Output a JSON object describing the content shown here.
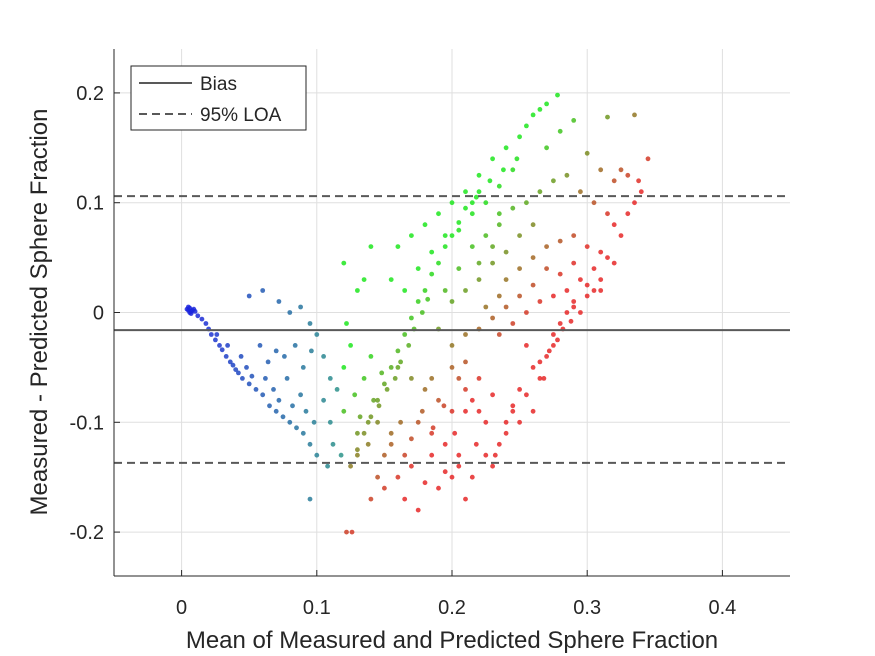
{
  "chart_data": {
    "type": "scatter",
    "xlabel": "Mean of Measured and Predicted Sphere Fraction",
    "ylabel": "Measured - Predicted Sphere Fraction",
    "xlim": [
      -0.05,
      0.45
    ],
    "ylim": [
      -0.24,
      0.24
    ],
    "xticks": [
      0,
      0.1,
      0.2,
      0.3,
      0.4
    ],
    "xtick_labels": [
      "0",
      "0.1",
      "0.2",
      "0.3",
      "0.4"
    ],
    "yticks": [
      -0.2,
      -0.1,
      0,
      0.1,
      0.2
    ],
    "ytick_labels": [
      "-0.2",
      "-0.1",
      "0",
      "0.1",
      "0.2"
    ],
    "grid": true,
    "bias": -0.016,
    "loa_upper": 0.106,
    "loa_lower": -0.137,
    "legend": {
      "location": "top-left",
      "entries": [
        {
          "label": "Bias",
          "style": "solid",
          "color": "#595959"
        },
        {
          "label": "95% LOA",
          "style": "dashed",
          "color": "#595959"
        }
      ]
    },
    "point_color_scale": "blue (low) → green → red (high)",
    "points": [
      [
        0.004,
        0.003
      ],
      [
        0.005,
        0.002
      ],
      [
        0.006,
        0.004
      ],
      [
        0.007,
        0.001
      ],
      [
        0.008,
        0.002
      ],
      [
        0.006,
        0.0
      ],
      [
        0.009,
        0.003
      ],
      [
        0.005,
        0.005
      ],
      [
        0.01,
        0.001
      ],
      [
        0.007,
        -0.001
      ],
      [
        0.012,
        -0.003
      ],
      [
        0.015,
        -0.006
      ],
      [
        0.018,
        -0.01
      ],
      [
        0.02,
        -0.015
      ],
      [
        0.022,
        -0.02
      ],
      [
        0.025,
        -0.025
      ],
      [
        0.028,
        -0.03
      ],
      [
        0.03,
        -0.034
      ],
      [
        0.033,
        -0.04
      ],
      [
        0.036,
        -0.045
      ],
      [
        0.04,
        -0.052
      ],
      [
        0.042,
        -0.055
      ],
      [
        0.045,
        -0.06
      ],
      [
        0.048,
        -0.05
      ],
      [
        0.05,
        -0.065
      ],
      [
        0.034,
        -0.03
      ],
      [
        0.026,
        -0.02
      ],
      [
        0.038,
        -0.048
      ],
      [
        0.044,
        -0.04
      ],
      [
        0.052,
        -0.058
      ],
      [
        0.055,
        -0.07
      ],
      [
        0.06,
        -0.075
      ],
      [
        0.062,
        -0.06
      ],
      [
        0.065,
        -0.085
      ],
      [
        0.068,
        -0.07
      ],
      [
        0.07,
        -0.09
      ],
      [
        0.072,
        -0.08
      ],
      [
        0.075,
        -0.095
      ],
      [
        0.078,
        -0.06
      ],
      [
        0.08,
        -0.1
      ],
      [
        0.082,
        -0.085
      ],
      [
        0.085,
        -0.105
      ],
      [
        0.088,
        -0.075
      ],
      [
        0.09,
        -0.11
      ],
      [
        0.092,
        -0.09
      ],
      [
        0.095,
        -0.12
      ],
      [
        0.098,
        -0.1
      ],
      [
        0.1,
        -0.13
      ],
      [
        0.058,
        -0.03
      ],
      [
        0.064,
        -0.045
      ],
      [
        0.07,
        -0.035
      ],
      [
        0.076,
        -0.04
      ],
      [
        0.084,
        -0.03
      ],
      [
        0.09,
        -0.05
      ],
      [
        0.096,
        -0.035
      ],
      [
        0.05,
        0.015
      ],
      [
        0.06,
        0.02
      ],
      [
        0.072,
        0.01
      ],
      [
        0.08,
        0.0
      ],
      [
        0.088,
        0.005
      ],
      [
        0.095,
        -0.01
      ],
      [
        0.1,
        -0.02
      ],
      [
        0.105,
        -0.04
      ],
      [
        0.11,
        -0.06
      ],
      [
        0.105,
        -0.08
      ],
      [
        0.11,
        -0.1
      ],
      [
        0.112,
        -0.12
      ],
      [
        0.108,
        -0.14
      ],
      [
        0.095,
        -0.17
      ],
      [
        0.118,
        -0.13
      ],
      [
        0.12,
        -0.09
      ],
      [
        0.115,
        -0.07
      ],
      [
        0.12,
        -0.05
      ],
      [
        0.125,
        -0.03
      ],
      [
        0.122,
        -0.01
      ],
      [
        0.12,
        0.045
      ],
      [
        0.13,
        0.02
      ],
      [
        0.126,
        -0.2
      ],
      [
        0.122,
        -0.2
      ],
      [
        0.13,
        -0.11
      ],
      [
        0.128,
        -0.075
      ],
      [
        0.135,
        -0.06
      ],
      [
        0.132,
        -0.095
      ],
      [
        0.138,
        -0.12
      ],
      [
        0.14,
        -0.04
      ],
      [
        0.142,
        -0.08
      ],
      [
        0.145,
        -0.1
      ],
      [
        0.148,
        -0.055
      ],
      [
        0.15,
        -0.13
      ],
      [
        0.135,
        0.03
      ],
      [
        0.14,
        0.06
      ],
      [
        0.155,
        0.03
      ],
      [
        0.16,
        0.06
      ],
      [
        0.165,
        0.02
      ],
      [
        0.17,
        0.07
      ],
      [
        0.175,
        0.04
      ],
      [
        0.18,
        0.08
      ],
      [
        0.185,
        0.055
      ],
      [
        0.19,
        0.09
      ],
      [
        0.195,
        0.07
      ],
      [
        0.2,
        0.1
      ],
      [
        0.205,
        0.075
      ],
      [
        0.21,
        0.11
      ],
      [
        0.215,
        0.09
      ],
      [
        0.22,
        0.125
      ],
      [
        0.225,
        0.1
      ],
      [
        0.23,
        0.14
      ],
      [
        0.235,
        0.115
      ],
      [
        0.24,
        0.15
      ],
      [
        0.245,
        0.13
      ],
      [
        0.25,
        0.16
      ],
      [
        0.255,
        0.17
      ],
      [
        0.26,
        0.18
      ],
      [
        0.265,
        0.185
      ],
      [
        0.27,
        0.19
      ],
      [
        0.278,
        0.198
      ],
      [
        0.248,
        0.14
      ],
      [
        0.238,
        0.13
      ],
      [
        0.228,
        0.12
      ],
      [
        0.218,
        0.105
      ],
      [
        0.125,
        -0.14
      ],
      [
        0.13,
        -0.125
      ],
      [
        0.135,
        -0.11
      ],
      [
        0.14,
        -0.095
      ],
      [
        0.145,
        -0.08
      ],
      [
        0.15,
        -0.065
      ],
      [
        0.155,
        -0.05
      ],
      [
        0.16,
        -0.035
      ],
      [
        0.165,
        -0.02
      ],
      [
        0.17,
        -0.005
      ],
      [
        0.175,
        0.01
      ],
      [
        0.18,
        0.02
      ],
      [
        0.185,
        0.035
      ],
      [
        0.19,
        0.045
      ],
      [
        0.195,
        0.06
      ],
      [
        0.2,
        0.07
      ],
      [
        0.205,
        0.082
      ],
      [
        0.21,
        0.095
      ],
      [
        0.215,
        0.1
      ],
      [
        0.22,
        0.11
      ],
      [
        0.13,
        -0.13
      ],
      [
        0.138,
        -0.1
      ],
      [
        0.146,
        -0.085
      ],
      [
        0.152,
        -0.07
      ],
      [
        0.158,
        -0.06
      ],
      [
        0.162,
        -0.045
      ],
      [
        0.168,
        -0.03
      ],
      [
        0.172,
        -0.015
      ],
      [
        0.178,
        0.0
      ],
      [
        0.182,
        0.012
      ],
      [
        0.15,
        -0.16
      ],
      [
        0.16,
        -0.15
      ],
      [
        0.165,
        -0.17
      ],
      [
        0.17,
        -0.14
      ],
      [
        0.175,
        -0.18
      ],
      [
        0.18,
        -0.155
      ],
      [
        0.185,
        -0.13
      ],
      [
        0.19,
        -0.16
      ],
      [
        0.195,
        -0.145
      ],
      [
        0.2,
        -0.15
      ],
      [
        0.205,
        -0.13
      ],
      [
        0.21,
        -0.17
      ],
      [
        0.155,
        -0.12
      ],
      [
        0.162,
        -0.1
      ],
      [
        0.17,
        -0.115
      ],
      [
        0.178,
        -0.09
      ],
      [
        0.186,
        -0.105
      ],
      [
        0.194,
        -0.085
      ],
      [
        0.202,
        -0.11
      ],
      [
        0.21,
        -0.09
      ],
      [
        0.218,
        -0.12
      ],
      [
        0.225,
        -0.1
      ],
      [
        0.232,
        -0.13
      ],
      [
        0.24,
        -0.11
      ],
      [
        0.23,
        -0.075
      ],
      [
        0.22,
        -0.06
      ],
      [
        0.21,
        -0.045
      ],
      [
        0.2,
        -0.03
      ],
      [
        0.19,
        -0.015
      ],
      [
        0.185,
        -0.06
      ],
      [
        0.195,
        0.02
      ],
      [
        0.205,
        0.04
      ],
      [
        0.215,
        0.06
      ],
      [
        0.225,
        0.07
      ],
      [
        0.235,
        0.08
      ],
      [
        0.245,
        0.095
      ],
      [
        0.255,
        0.1
      ],
      [
        0.265,
        0.11
      ],
      [
        0.275,
        0.12
      ],
      [
        0.285,
        0.125
      ],
      [
        0.295,
        0.11
      ],
      [
        0.305,
        0.1
      ],
      [
        0.315,
        0.09
      ],
      [
        0.32,
        0.08
      ],
      [
        0.325,
        0.07
      ],
      [
        0.33,
        0.09
      ],
      [
        0.335,
        0.1
      ],
      [
        0.34,
        0.11
      ],
      [
        0.345,
        0.14
      ],
      [
        0.335,
        0.18
      ],
      [
        0.315,
        0.178
      ],
      [
        0.29,
        0.175
      ],
      [
        0.28,
        0.165
      ],
      [
        0.27,
        0.15
      ],
      [
        0.3,
        0.145
      ],
      [
        0.31,
        0.13
      ],
      [
        0.32,
        0.12
      ],
      [
        0.325,
        0.13
      ],
      [
        0.33,
        0.125
      ],
      [
        0.338,
        0.12
      ],
      [
        0.24,
        0.03
      ],
      [
        0.25,
        0.04
      ],
      [
        0.26,
        0.05
      ],
      [
        0.27,
        0.06
      ],
      [
        0.28,
        0.065
      ],
      [
        0.29,
        0.07
      ],
      [
        0.3,
        0.06
      ],
      [
        0.31,
        0.055
      ],
      [
        0.315,
        0.05
      ],
      [
        0.32,
        0.045
      ],
      [
        0.305,
        0.04
      ],
      [
        0.295,
        0.03
      ],
      [
        0.285,
        0.02
      ],
      [
        0.275,
        0.015
      ],
      [
        0.265,
        0.01
      ],
      [
        0.255,
        0.0
      ],
      [
        0.245,
        -0.01
      ],
      [
        0.235,
        -0.02
      ],
      [
        0.28,
        0.035
      ],
      [
        0.29,
        0.045
      ],
      [
        0.3,
        0.025
      ],
      [
        0.31,
        0.02
      ],
      [
        0.27,
        0.04
      ],
      [
        0.26,
        0.025
      ],
      [
        0.25,
        0.015
      ],
      [
        0.24,
        0.005
      ],
      [
        0.23,
        -0.005
      ],
      [
        0.22,
        -0.015
      ],
      [
        0.25,
        0.07
      ],
      [
        0.26,
        0.08
      ],
      [
        0.255,
        -0.03
      ],
      [
        0.26,
        -0.05
      ],
      [
        0.265,
        -0.06
      ],
      [
        0.27,
        -0.04
      ],
      [
        0.275,
        -0.02
      ],
      [
        0.28,
        -0.01
      ],
      [
        0.285,
        0.0
      ],
      [
        0.29,
        0.005
      ],
      [
        0.25,
        -0.07
      ],
      [
        0.245,
        -0.085
      ],
      [
        0.24,
        -0.1
      ],
      [
        0.235,
        -0.12
      ],
      [
        0.245,
        -0.09
      ],
      [
        0.255,
        -0.075
      ],
      [
        0.265,
        -0.045
      ],
      [
        0.275,
        -0.03
      ],
      [
        0.26,
        -0.09
      ],
      [
        0.25,
        -0.1
      ],
      [
        0.23,
        -0.14
      ],
      [
        0.225,
        -0.13
      ],
      [
        0.268,
        -0.06
      ],
      [
        0.272,
        -0.035
      ],
      [
        0.278,
        -0.025
      ],
      [
        0.282,
        -0.015
      ],
      [
        0.288,
        -0.008
      ],
      [
        0.29,
        0.01
      ],
      [
        0.295,
        0.0
      ],
      [
        0.3,
        0.015
      ],
      [
        0.305,
        0.02
      ],
      [
        0.31,
        0.03
      ],
      [
        0.2,
        -0.05
      ],
      [
        0.205,
        -0.06
      ],
      [
        0.21,
        -0.07
      ],
      [
        0.215,
        -0.08
      ],
      [
        0.22,
        -0.09
      ],
      [
        0.2,
        -0.09
      ],
      [
        0.19,
        -0.08
      ],
      [
        0.18,
        -0.07
      ],
      [
        0.17,
        -0.06
      ],
      [
        0.16,
        -0.05
      ],
      [
        0.175,
        -0.1
      ],
      [
        0.185,
        -0.11
      ],
      [
        0.195,
        -0.12
      ],
      [
        0.205,
        -0.14
      ],
      [
        0.215,
        -0.15
      ],
      [
        0.165,
        -0.13
      ],
      [
        0.155,
        -0.11
      ],
      [
        0.145,
        -0.15
      ],
      [
        0.14,
        -0.17
      ],
      [
        0.2,
        0.01
      ],
      [
        0.21,
        0.02
      ],
      [
        0.22,
        0.03
      ],
      [
        0.23,
        0.045
      ],
      [
        0.21,
        -0.02
      ],
      [
        0.225,
        0.005
      ],
      [
        0.235,
        0.015
      ],
      [
        0.24,
        0.055
      ],
      [
        0.23,
        0.06
      ],
      [
        0.22,
        0.045
      ],
      [
        0.235,
        0.09
      ]
    ]
  }
}
